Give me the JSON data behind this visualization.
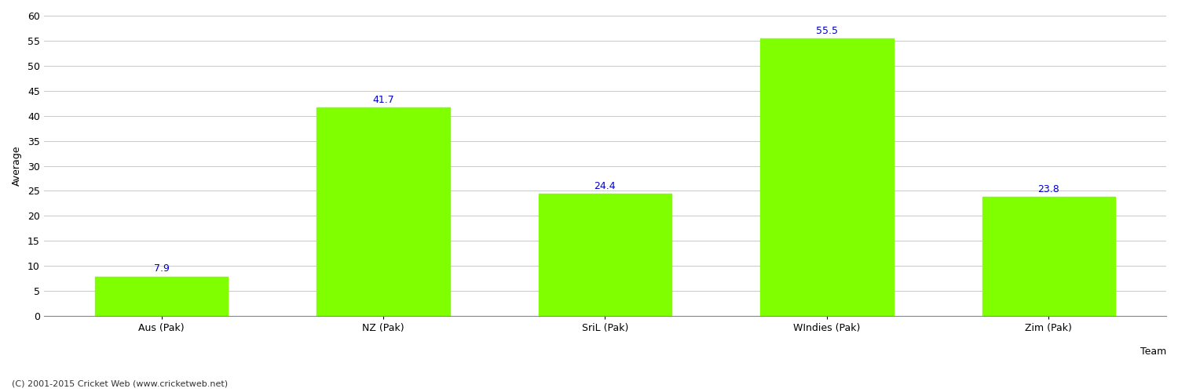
{
  "categories": [
    "Aus (Pak)",
    "NZ (Pak)",
    "SriL (Pak)",
    "WIndies (Pak)",
    "Zim (Pak)"
  ],
  "values": [
    7.9,
    41.7,
    24.4,
    55.5,
    23.8
  ],
  "bar_color": "#7fff00",
  "bar_edgecolor": "#7fff00",
  "label_color": "#0000cc",
  "label_fontsize": 9,
  "xlabel": "Team",
  "ylabel": "Average",
  "ylim": [
    0,
    60
  ],
  "yticks": [
    0,
    5,
    10,
    15,
    20,
    25,
    30,
    35,
    40,
    45,
    50,
    55,
    60
  ],
  "grid_color": "#cccccc",
  "bg_color": "#ffffff",
  "axes_bg_color": "#ffffff",
  "tick_label_fontsize": 9,
  "axis_label_fontsize": 9,
  "footer_text": "(C) 2001-2015 Cricket Web (www.cricketweb.net)",
  "footer_fontsize": 8,
  "footer_color": "#333333",
  "bar_width": 0.6
}
